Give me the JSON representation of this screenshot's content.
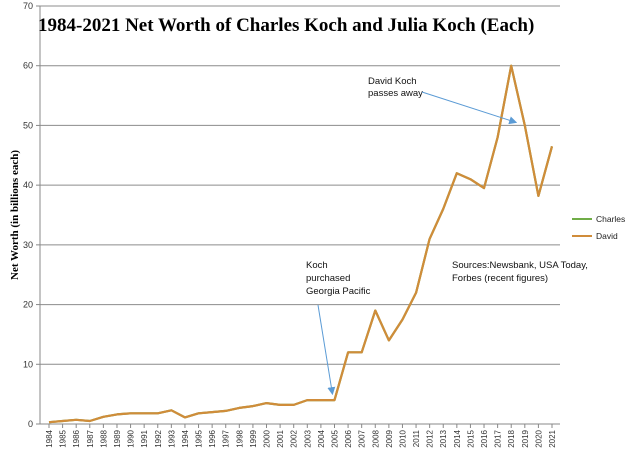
{
  "chart_data": {
    "type": "line",
    "title": "1984-2021 Net Worth of Charles Koch and Julia Koch  (Each)",
    "ylabel": "Net Worth (in billions each)",
    "xlabel": "",
    "ylim": [
      0,
      70
    ],
    "yticks": [
      0,
      10,
      20,
      30,
      40,
      50,
      60,
      70
    ],
    "grid": true,
    "legend_position": "right",
    "categories": [
      "1984",
      "1985",
      "1986",
      "1987",
      "1988",
      "1989",
      "1990",
      "1991",
      "1992",
      "1993",
      "1994",
      "1995",
      "1996",
      "1997",
      "1998",
      "1999",
      "2000",
      "2001",
      "2002",
      "2003",
      "2004",
      "2005",
      "2006",
      "2007",
      "2008",
      "2009",
      "2010",
      "2011",
      "2012",
      "2013",
      "2014",
      "2015",
      "2016",
      "2017",
      "2018",
      "2019",
      "2020",
      "2021"
    ],
    "series": [
      {
        "name": "Charles",
        "color": "#70ad47",
        "values": [
          0.3,
          0.5,
          0.7,
          0.5,
          1.2,
          1.6,
          1.8,
          1.8,
          1.8,
          2.3,
          1.1,
          1.8,
          2.0,
          2.2,
          2.7,
          3.0,
          3.5,
          3.2,
          3.2,
          4.0,
          4.0,
          4.0,
          12.0,
          12.0,
          19.0,
          14.0,
          17.5,
          22.0,
          31.0,
          36.0,
          42.0,
          41.0,
          39.5,
          48.0,
          60.0,
          50.0,
          38.2,
          46.5
        ]
      },
      {
        "name": "David",
        "color": "#d08c3a",
        "values": [
          0.3,
          0.5,
          0.7,
          0.5,
          1.2,
          1.6,
          1.8,
          1.8,
          1.8,
          2.3,
          1.1,
          1.8,
          2.0,
          2.2,
          2.7,
          3.0,
          3.5,
          3.2,
          3.2,
          4.0,
          4.0,
          4.0,
          12.0,
          12.0,
          19.0,
          14.0,
          17.5,
          22.0,
          31.0,
          36.0,
          42.0,
          41.0,
          39.5,
          48.0,
          60.0,
          50.0,
          38.2,
          46.5
        ]
      }
    ],
    "annotations": [
      {
        "lines": [
          "David Koch",
          "passes away"
        ],
        "arrow_target_category": "2018",
        "arrow_target_value": 50.5
      },
      {
        "lines": [
          "Koch",
          "purchased",
          "Georgia Pacific"
        ],
        "arrow_target_category": "2005",
        "arrow_target_value": 5
      },
      {
        "lines": [
          "Sources:Newsbank, USA Today,",
          "Forbes (recent figures)"
        ]
      }
    ],
    "annotation_arrow_color": "#5b9bd5",
    "gridline_color": "#8c8c8c"
  }
}
